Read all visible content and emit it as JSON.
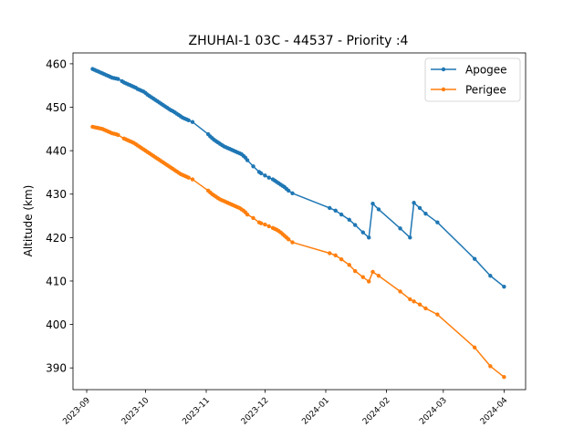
{
  "chart_data": {
    "type": "line",
    "title": "ZHUHAI-1 03C - 44537 - Priority :4",
    "xlabel": "",
    "ylabel": "Altitude (km)",
    "x_tick_labels": [
      "2023-09",
      "2023-10",
      "2023-11",
      "2023-12",
      "2024-01",
      "2024-02",
      "2024-03",
      "2024-04"
    ],
    "x_ticks": [
      "2023-09-01",
      "2023-10-01",
      "2023-11-01",
      "2023-12-01",
      "2024-01-01",
      "2024-02-01",
      "2024-03-01",
      "2024-04-01"
    ],
    "xlim": [
      "2023-08-25",
      "2024-04-12"
    ],
    "y_ticks": [
      390,
      400,
      410,
      420,
      430,
      440,
      450,
      460
    ],
    "ylim": [
      385,
      462.5
    ],
    "legend_position": "top-right",
    "grid": false,
    "series": [
      {
        "name": "Apogee",
        "color": "#1f77b4",
        "points": [
          [
            "2023-09-04",
            458.8
          ],
          [
            "2023-09-05",
            458.6
          ],
          [
            "2023-09-06",
            458.4
          ],
          [
            "2023-09-07",
            458.2
          ],
          [
            "2023-09-08",
            458.0
          ],
          [
            "2023-09-09",
            457.8
          ],
          [
            "2023-09-10",
            457.6
          ],
          [
            "2023-09-11",
            457.4
          ],
          [
            "2023-09-12",
            457.2
          ],
          [
            "2023-09-13",
            457.0
          ],
          [
            "2023-09-14",
            456.8
          ],
          [
            "2023-09-15",
            456.7
          ],
          [
            "2023-09-16",
            456.6
          ],
          [
            "2023-09-17",
            456.5
          ],
          [
            "2023-09-19",
            456.0
          ],
          [
            "2023-09-20",
            455.7
          ],
          [
            "2023-09-21",
            455.5
          ],
          [
            "2023-09-22",
            455.3
          ],
          [
            "2023-09-23",
            455.1
          ],
          [
            "2023-09-24",
            454.9
          ],
          [
            "2023-09-25",
            454.7
          ],
          [
            "2023-09-26",
            454.5
          ],
          [
            "2023-09-27",
            454.2
          ],
          [
            "2023-09-28",
            454.0
          ],
          [
            "2023-09-29",
            453.8
          ],
          [
            "2023-09-30",
            453.6
          ],
          [
            "2023-10-01",
            453.3
          ],
          [
            "2023-10-02",
            452.9
          ],
          [
            "2023-10-03",
            452.6
          ],
          [
            "2023-10-04",
            452.3
          ],
          [
            "2023-10-05",
            452.0
          ],
          [
            "2023-10-06",
            451.7
          ],
          [
            "2023-10-07",
            451.4
          ],
          [
            "2023-10-08",
            451.1
          ],
          [
            "2023-10-09",
            450.8
          ],
          [
            "2023-10-10",
            450.5
          ],
          [
            "2023-10-11",
            450.2
          ],
          [
            "2023-10-12",
            449.9
          ],
          [
            "2023-10-13",
            449.6
          ],
          [
            "2023-10-14",
            449.3
          ],
          [
            "2023-10-15",
            449.1
          ],
          [
            "2023-10-16",
            448.8
          ],
          [
            "2023-10-17",
            448.5
          ],
          [
            "2023-10-18",
            448.2
          ],
          [
            "2023-10-19",
            447.9
          ],
          [
            "2023-10-20",
            447.6
          ],
          [
            "2023-10-21",
            447.4
          ],
          [
            "2023-10-22",
            447.2
          ],
          [
            "2023-10-23",
            447.0
          ],
          [
            "2023-10-25",
            446.6
          ],
          [
            "2023-11-02",
            443.8
          ],
          [
            "2023-11-03",
            443.3
          ],
          [
            "2023-11-04",
            442.9
          ],
          [
            "2023-11-05",
            442.5
          ],
          [
            "2023-11-06",
            442.2
          ],
          [
            "2023-11-07",
            441.9
          ],
          [
            "2023-11-08",
            441.6
          ],
          [
            "2023-11-09",
            441.3
          ],
          [
            "2023-11-10",
            441.0
          ],
          [
            "2023-11-11",
            440.8
          ],
          [
            "2023-11-12",
            440.6
          ],
          [
            "2023-11-13",
            440.4
          ],
          [
            "2023-11-14",
            440.2
          ],
          [
            "2023-11-15",
            440.0
          ],
          [
            "2023-11-16",
            439.8
          ],
          [
            "2023-11-17",
            439.6
          ],
          [
            "2023-11-18",
            439.4
          ],
          [
            "2023-11-19",
            439.2
          ],
          [
            "2023-11-20",
            438.8
          ],
          [
            "2023-11-21",
            438.4
          ],
          [
            "2023-11-22",
            437.8
          ],
          [
            "2023-11-25",
            436.4
          ],
          [
            "2023-11-28",
            435.1
          ],
          [
            "2023-11-29",
            434.8
          ],
          [
            "2023-12-01",
            434.3
          ],
          [
            "2023-12-03",
            433.8
          ],
          [
            "2023-12-05",
            433.4
          ],
          [
            "2023-12-06",
            433.1
          ],
          [
            "2023-12-07",
            432.8
          ],
          [
            "2023-12-08",
            432.5
          ],
          [
            "2023-12-09",
            432.2
          ],
          [
            "2023-12-10",
            431.9
          ],
          [
            "2023-12-11",
            431.6
          ],
          [
            "2023-12-12",
            431.2
          ],
          [
            "2023-12-13",
            430.8
          ],
          [
            "2023-12-15",
            430.2
          ],
          [
            "2024-01-03",
            426.8
          ],
          [
            "2024-01-06",
            426.2
          ],
          [
            "2024-01-09",
            425.3
          ],
          [
            "2024-01-13",
            424.1
          ],
          [
            "2024-01-16",
            422.9
          ],
          [
            "2024-01-20",
            421.2
          ],
          [
            "2024-01-23",
            420.0
          ],
          [
            "2024-01-25",
            427.8
          ],
          [
            "2024-01-28",
            426.5
          ],
          [
            "2024-02-08",
            422.1
          ],
          [
            "2024-02-13",
            420.0
          ],
          [
            "2024-02-15",
            428.0
          ],
          [
            "2024-02-18",
            426.8
          ],
          [
            "2024-02-21",
            425.5
          ],
          [
            "2024-02-27",
            423.5
          ],
          [
            "2024-03-17",
            415.1
          ],
          [
            "2024-03-25",
            411.2
          ],
          [
            "2024-04-01",
            408.7
          ]
        ]
      },
      {
        "name": "Perigee",
        "color": "#ff7f0e",
        "points": [
          [
            "2023-09-04",
            445.5
          ],
          [
            "2023-09-05",
            445.4
          ],
          [
            "2023-09-06",
            445.3
          ],
          [
            "2023-09-07",
            445.2
          ],
          [
            "2023-09-08",
            445.1
          ],
          [
            "2023-09-09",
            445.0
          ],
          [
            "2023-09-10",
            444.8
          ],
          [
            "2023-09-11",
            444.6
          ],
          [
            "2023-09-12",
            444.4
          ],
          [
            "2023-09-13",
            444.2
          ],
          [
            "2023-09-14",
            444.0
          ],
          [
            "2023-09-15",
            443.9
          ],
          [
            "2023-09-16",
            443.8
          ],
          [
            "2023-09-17",
            443.6
          ],
          [
            "2023-09-20",
            442.8
          ],
          [
            "2023-09-21",
            442.6
          ],
          [
            "2023-09-22",
            442.4
          ],
          [
            "2023-09-23",
            442.2
          ],
          [
            "2023-09-24",
            442.0
          ],
          [
            "2023-09-25",
            441.8
          ],
          [
            "2023-09-26",
            441.5
          ],
          [
            "2023-09-27",
            441.2
          ],
          [
            "2023-09-28",
            440.9
          ],
          [
            "2023-09-29",
            440.6
          ],
          [
            "2023-09-30",
            440.3
          ],
          [
            "2023-10-01",
            440.0
          ],
          [
            "2023-10-02",
            439.7
          ],
          [
            "2023-10-03",
            439.4
          ],
          [
            "2023-10-04",
            439.1
          ],
          [
            "2023-10-05",
            438.8
          ],
          [
            "2023-10-06",
            438.5
          ],
          [
            "2023-10-07",
            438.2
          ],
          [
            "2023-10-08",
            437.9
          ],
          [
            "2023-10-09",
            437.6
          ],
          [
            "2023-10-10",
            437.3
          ],
          [
            "2023-10-11",
            437.0
          ],
          [
            "2023-10-12",
            436.7
          ],
          [
            "2023-10-13",
            436.4
          ],
          [
            "2023-10-14",
            436.1
          ],
          [
            "2023-10-15",
            435.8
          ],
          [
            "2023-10-16",
            435.5
          ],
          [
            "2023-10-17",
            435.2
          ],
          [
            "2023-10-18",
            434.9
          ],
          [
            "2023-10-19",
            434.6
          ],
          [
            "2023-10-20",
            434.4
          ],
          [
            "2023-10-21",
            434.2
          ],
          [
            "2023-10-22",
            434.0
          ],
          [
            "2023-10-23",
            433.8
          ],
          [
            "2023-10-25",
            433.4
          ],
          [
            "2023-11-02",
            430.8
          ],
          [
            "2023-11-03",
            430.4
          ],
          [
            "2023-11-04",
            430.0
          ],
          [
            "2023-11-05",
            429.7
          ],
          [
            "2023-11-06",
            429.4
          ],
          [
            "2023-11-07",
            429.1
          ],
          [
            "2023-11-08",
            428.8
          ],
          [
            "2023-11-09",
            428.6
          ],
          [
            "2023-11-10",
            428.4
          ],
          [
            "2023-11-11",
            428.2
          ],
          [
            "2023-11-12",
            428.0
          ],
          [
            "2023-11-13",
            427.8
          ],
          [
            "2023-11-14",
            427.6
          ],
          [
            "2023-11-15",
            427.4
          ],
          [
            "2023-11-16",
            427.2
          ],
          [
            "2023-11-17",
            427.0
          ],
          [
            "2023-11-18",
            426.8
          ],
          [
            "2023-11-19",
            426.5
          ],
          [
            "2023-11-20",
            426.2
          ],
          [
            "2023-11-21",
            425.8
          ],
          [
            "2023-11-22",
            425.3
          ],
          [
            "2023-11-25",
            424.5
          ],
          [
            "2023-11-28",
            423.5
          ],
          [
            "2023-11-29",
            423.3
          ],
          [
            "2023-12-01",
            423.0
          ],
          [
            "2023-12-03",
            422.6
          ],
          [
            "2023-12-05",
            422.2
          ],
          [
            "2023-12-06",
            422.0
          ],
          [
            "2023-12-07",
            421.8
          ],
          [
            "2023-12-08",
            421.5
          ],
          [
            "2023-12-09",
            421.2
          ],
          [
            "2023-12-10",
            420.8
          ],
          [
            "2023-12-11",
            420.4
          ],
          [
            "2023-12-12",
            420.0
          ],
          [
            "2023-12-13",
            419.6
          ],
          [
            "2023-12-15",
            418.9
          ],
          [
            "2024-01-03",
            416.4
          ],
          [
            "2024-01-06",
            415.9
          ],
          [
            "2024-01-09",
            415.0
          ],
          [
            "2024-01-13",
            413.7
          ],
          [
            "2024-01-16",
            412.3
          ],
          [
            "2024-01-20",
            410.9
          ],
          [
            "2024-01-23",
            409.9
          ],
          [
            "2024-01-25",
            412.1
          ],
          [
            "2024-01-28",
            411.2
          ],
          [
            "2024-02-08",
            407.6
          ],
          [
            "2024-02-13",
            405.8
          ],
          [
            "2024-02-15",
            405.3
          ],
          [
            "2024-02-18",
            404.6
          ],
          [
            "2024-02-21",
            403.7
          ],
          [
            "2024-02-27",
            402.3
          ],
          [
            "2024-03-17",
            394.7
          ],
          [
            "2024-03-25",
            390.4
          ],
          [
            "2024-04-01",
            387.9
          ]
        ]
      }
    ]
  }
}
